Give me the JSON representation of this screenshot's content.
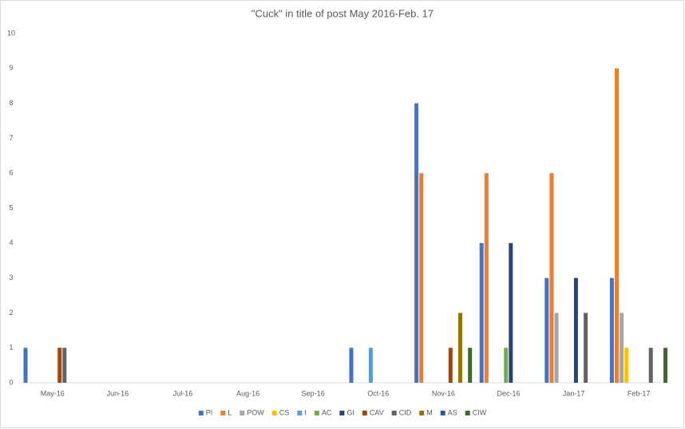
{
  "chart_data": {
    "type": "bar",
    "title": "\"Cuck\" in title of post May 2016-Feb. 17",
    "categories": [
      "May-16",
      "Jun-16",
      "Jul-16",
      "Aug-16",
      "Sep-16",
      "Oct-16",
      "Nov-16",
      "Dec-16",
      "Jan-17",
      "Feb-17"
    ],
    "series": [
      {
        "name": "PI",
        "color": "#4472c4",
        "values": [
          1,
          0,
          0,
          0,
          0,
          1,
          8,
          4,
          3,
          3
        ]
      },
      {
        "name": "L",
        "color": "#ed7d31",
        "values": [
          0,
          0,
          0,
          0,
          0,
          0,
          6,
          6,
          6,
          9
        ]
      },
      {
        "name": "POW",
        "color": "#a5a5a5",
        "values": [
          0,
          0,
          0,
          0,
          0,
          0,
          0,
          0,
          2,
          2
        ]
      },
      {
        "name": "CS",
        "color": "#ffc000",
        "values": [
          0,
          0,
          0,
          0,
          0,
          0,
          0,
          0,
          0,
          1
        ]
      },
      {
        "name": "I",
        "color": "#5b9bd5",
        "values": [
          0,
          0,
          0,
          0,
          0,
          1,
          0,
          0,
          0,
          0
        ]
      },
      {
        "name": "AC",
        "color": "#70ad47",
        "values": [
          0,
          0,
          0,
          0,
          0,
          0,
          0,
          1,
          0,
          0
        ]
      },
      {
        "name": "GI",
        "color": "#264478",
        "values": [
          0,
          0,
          0,
          0,
          0,
          0,
          0,
          4,
          3,
          0
        ]
      },
      {
        "name": "CAV",
        "color": "#9e480e",
        "values": [
          1,
          0,
          0,
          0,
          0,
          0,
          1,
          0,
          0,
          0
        ]
      },
      {
        "name": "CID",
        "color": "#636363",
        "values": [
          1,
          0,
          0,
          0,
          0,
          0,
          0,
          0,
          2,
          1
        ]
      },
      {
        "name": "M",
        "color": "#997300",
        "values": [
          0,
          0,
          0,
          0,
          0,
          0,
          2,
          0,
          0,
          0
        ]
      },
      {
        "name": "AS",
        "color": "#255e91",
        "values": [
          0,
          0,
          0,
          0,
          0,
          0,
          0,
          0,
          0,
          0
        ]
      },
      {
        "name": "CIW",
        "color": "#43682b",
        "values": [
          0,
          0,
          0,
          0,
          0,
          0,
          1,
          0,
          0,
          1
        ]
      }
    ],
    "ylim": [
      0,
      10
    ],
    "yticks": [
      0,
      1,
      2,
      3,
      4,
      5,
      6,
      7,
      8,
      9,
      10
    ],
    "grid": false,
    "legend": "bottom"
  }
}
